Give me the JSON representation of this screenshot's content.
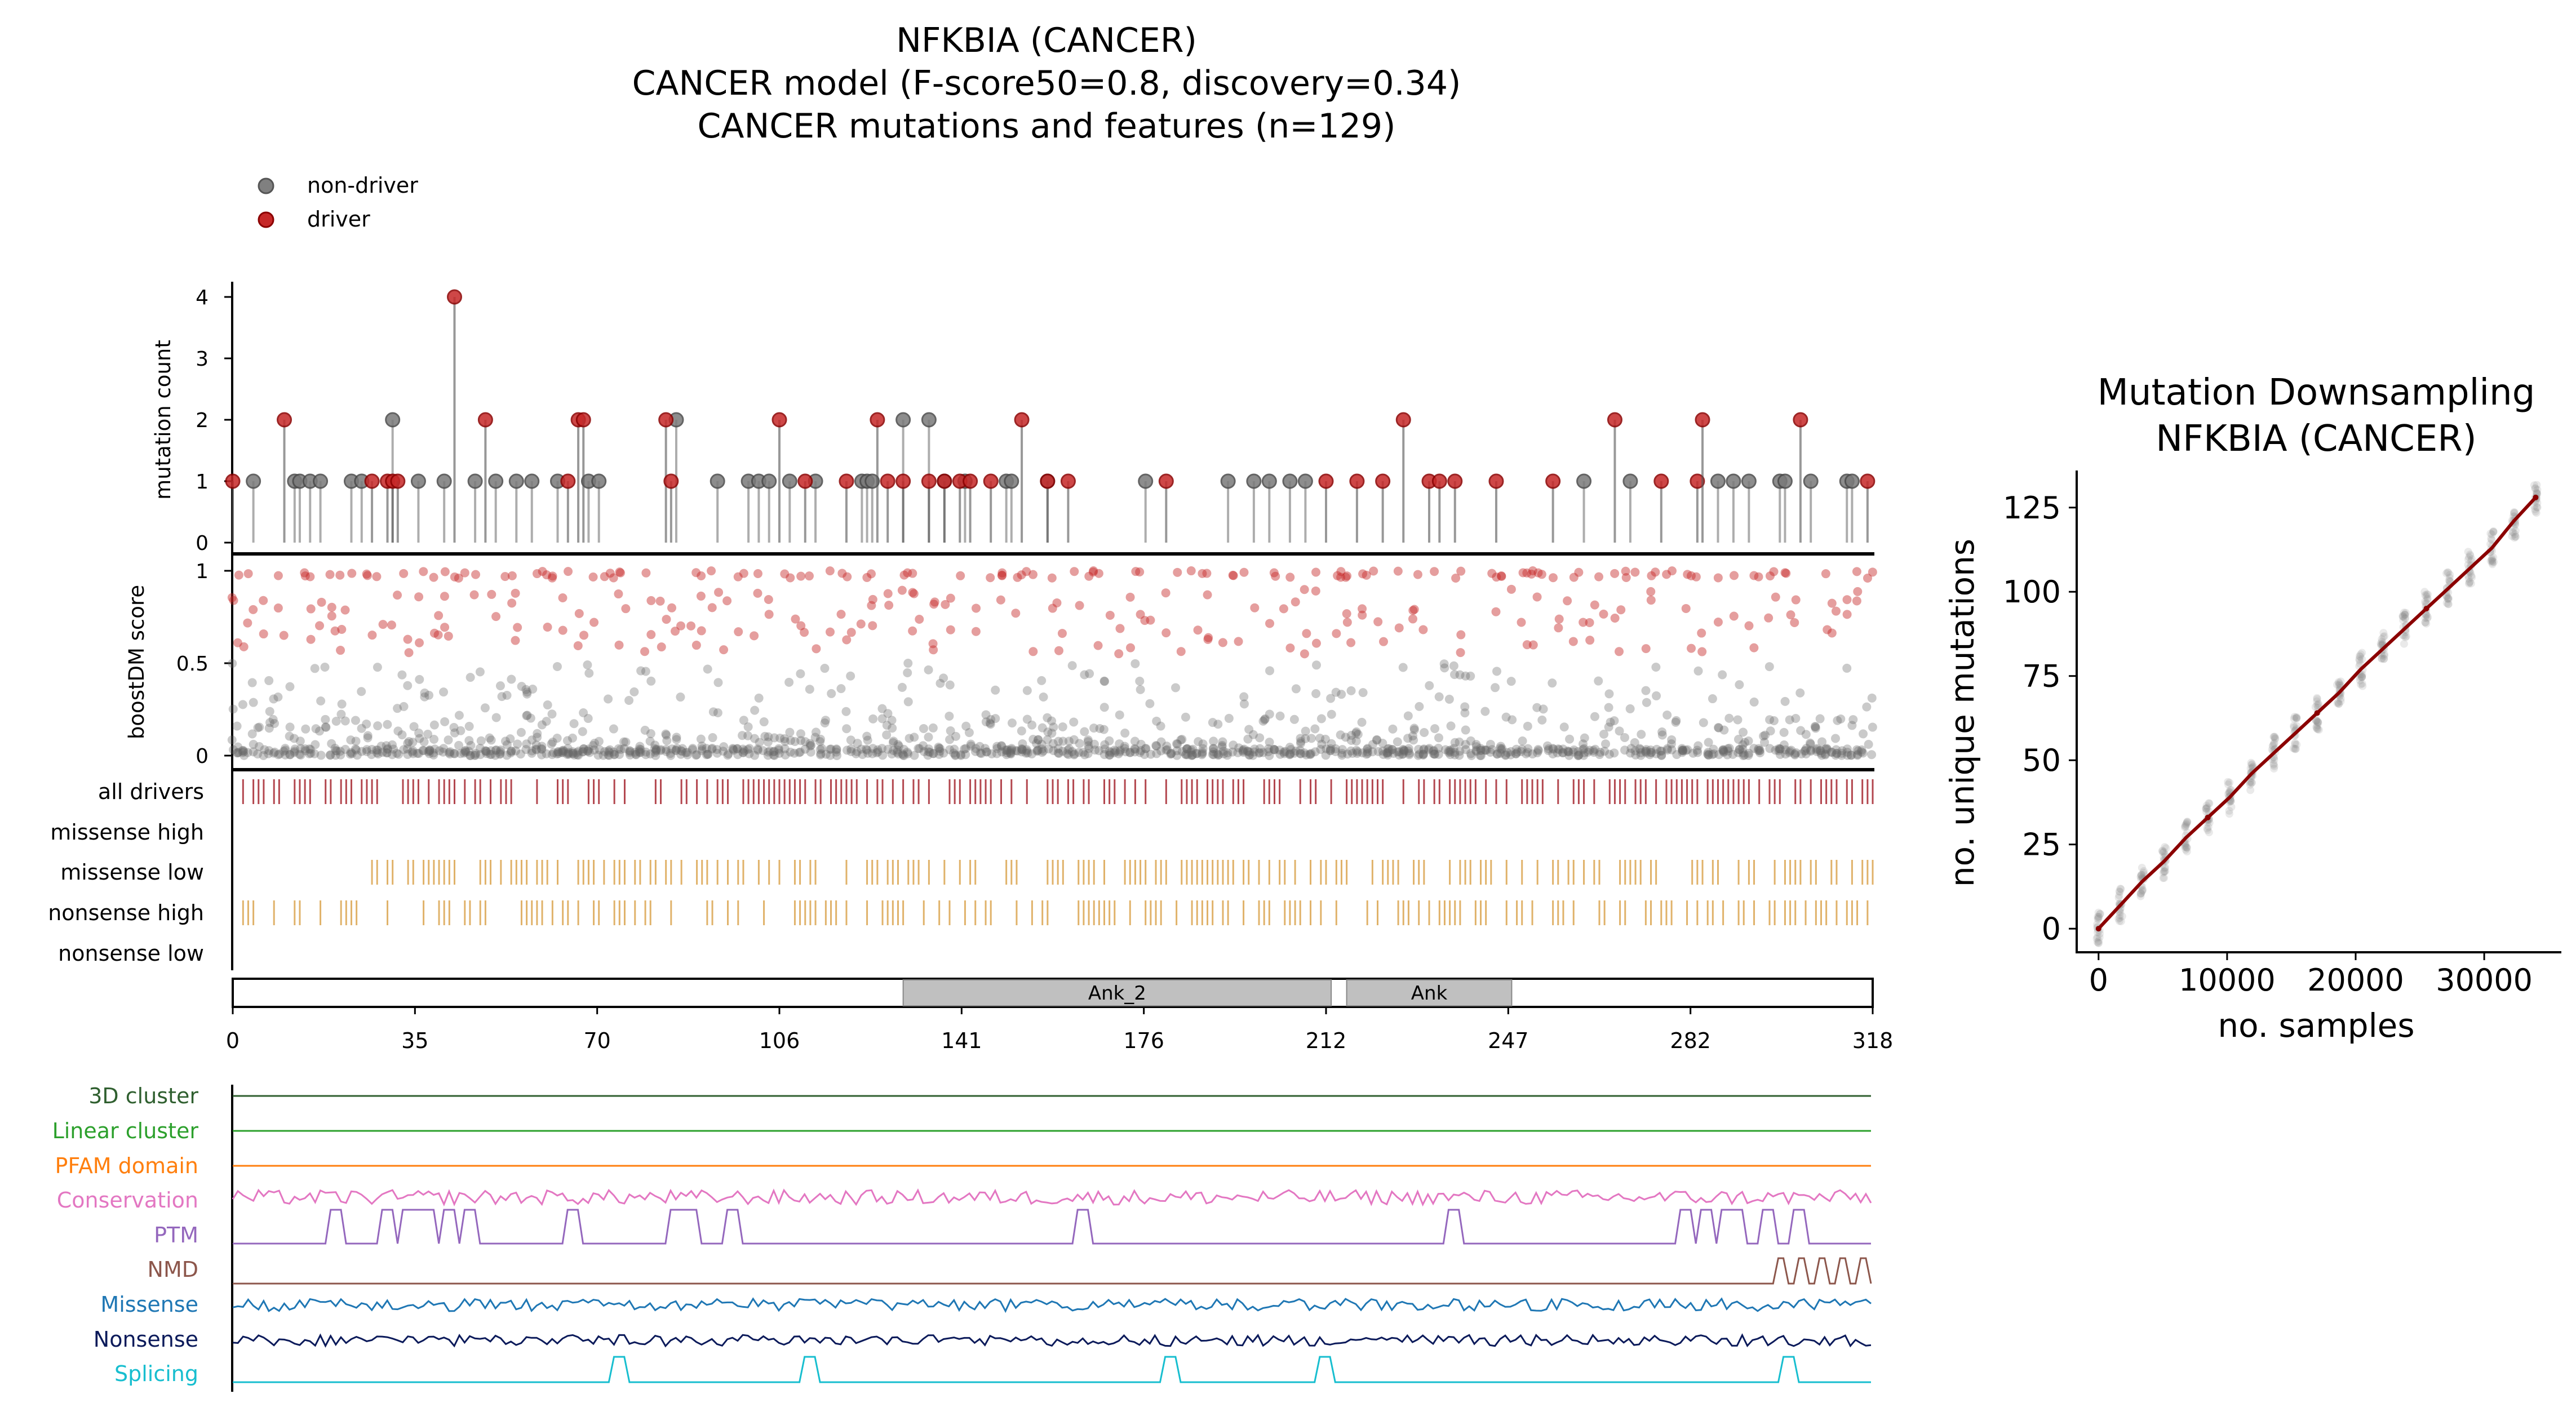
{
  "main": {
    "title_lines": [
      "NFKBIA (CANCER)",
      "CANCER model (F-score50=0.8, discovery=0.34)",
      "CANCER mutations and features (n=129)"
    ],
    "legend": [
      {
        "label": "non-driver",
        "color": "#808080"
      },
      {
        "label": "driver",
        "color": "#c62828"
      }
    ]
  },
  "colors": {
    "driver": "#c62828",
    "driver_dark": "#8b0000",
    "nondriver": "#707070",
    "drivers_track": "#b3474f",
    "csqn_track": "#e0b26a",
    "domain_fill": "#c0c0c0",
    "cluster3d": "#2f5f2f",
    "linear": "#2ca02c",
    "pfam": "#ff7f0e",
    "conservation": "#e377c2",
    "ptm": "#9467bd",
    "nmd": "#8c564b",
    "missense": "#1f77b4",
    "nonsense": "#0b1a5a",
    "splicing": "#17becf",
    "downsample_line": "#8b0000"
  },
  "chart_data": [
    {
      "id": "lollipop",
      "type": "scatter",
      "ylabel": "mutation count",
      "xlim": [
        0,
        318
      ],
      "ylim": [
        0,
        4
      ],
      "yticks": [
        "0",
        "1",
        "2",
        "3",
        "4"
      ],
      "drivers": [
        [
          0,
          1
        ],
        [
          10,
          2
        ],
        [
          27,
          1
        ],
        [
          30,
          1
        ],
        [
          31,
          1
        ],
        [
          32,
          1
        ],
        [
          43,
          4
        ],
        [
          49,
          2
        ],
        [
          65,
          1
        ],
        [
          67,
          2
        ],
        [
          68,
          2
        ],
        [
          84,
          2
        ],
        [
          85,
          1
        ],
        [
          106,
          2
        ],
        [
          111,
          1
        ],
        [
          119,
          1
        ],
        [
          125,
          2
        ],
        [
          127,
          1
        ],
        [
          130,
          1
        ],
        [
          135,
          1
        ],
        [
          138,
          1
        ],
        [
          141,
          1
        ],
        [
          143,
          1
        ],
        [
          147,
          1
        ],
        [
          153,
          2
        ],
        [
          158,
          1
        ],
        [
          162,
          1
        ],
        [
          181,
          1
        ],
        [
          212,
          1
        ],
        [
          218,
          1
        ],
        [
          223,
          1
        ],
        [
          227,
          2
        ],
        [
          232,
          1
        ],
        [
          234,
          1
        ],
        [
          237,
          1
        ],
        [
          245,
          1
        ],
        [
          256,
          1
        ],
        [
          268,
          2
        ],
        [
          277,
          1
        ],
        [
          284,
          1
        ],
        [
          285,
          2
        ],
        [
          304,
          2
        ],
        [
          317,
          1
        ]
      ],
      "nondrivers": [
        [
          4,
          1
        ],
        [
          12,
          1
        ],
        [
          13,
          1
        ],
        [
          15,
          1
        ],
        [
          17,
          1
        ],
        [
          23,
          1
        ],
        [
          25,
          1
        ],
        [
          31,
          2
        ],
        [
          36,
          1
        ],
        [
          41,
          1
        ],
        [
          47,
          1
        ],
        [
          51,
          1
        ],
        [
          55,
          1
        ],
        [
          58,
          1
        ],
        [
          63,
          1
        ],
        [
          69,
          1
        ],
        [
          71,
          1
        ],
        [
          86,
          2
        ],
        [
          94,
          1
        ],
        [
          100,
          1
        ],
        [
          102,
          1
        ],
        [
          104,
          1
        ],
        [
          108,
          1
        ],
        [
          113,
          1
        ],
        [
          122,
          1
        ],
        [
          123,
          1
        ],
        [
          124,
          1
        ],
        [
          130,
          2
        ],
        [
          135,
          2
        ],
        [
          138,
          1
        ],
        [
          142,
          1
        ],
        [
          150,
          1
        ],
        [
          151,
          1
        ],
        [
          158,
          1
        ],
        [
          177,
          1
        ],
        [
          193,
          1
        ],
        [
          198,
          1
        ],
        [
          201,
          1
        ],
        [
          205,
          1
        ],
        [
          208,
          1
        ],
        [
          262,
          1
        ],
        [
          271,
          1
        ],
        [
          288,
          1
        ],
        [
          291,
          1
        ],
        [
          294,
          1
        ],
        [
          300,
          1
        ],
        [
          301,
          1
        ],
        [
          306,
          1
        ],
        [
          313,
          1
        ],
        [
          314,
          1
        ]
      ]
    },
    {
      "id": "boostdm",
      "type": "scatter",
      "ylabel": "boostDM score",
      "xlim": [
        0,
        318
      ],
      "ylim": [
        0,
        1
      ],
      "yticks": [
        "0",
        "0.5",
        "1"
      ]
    },
    {
      "id": "tracks",
      "type": "scatter",
      "labels": [
        "all drivers",
        "missense high",
        "missense low",
        "nonsense high",
        "nonsense low"
      ],
      "domains": [
        {
          "name": "Ank_2",
          "start": 130,
          "end": 213
        },
        {
          "name": "Ank",
          "start": 216,
          "end": 248
        }
      ],
      "xticks": [
        "0",
        "35",
        "70",
        "106",
        "141",
        "176",
        "212",
        "247",
        "282",
        "318"
      ]
    },
    {
      "id": "features",
      "type": "line",
      "labels": [
        "3D cluster",
        "Linear cluster",
        "PFAM domain",
        "Conservation",
        "PTM",
        "NMD",
        "Missense",
        "Nonsense",
        "Splicing"
      ],
      "ptm_peaks": [
        20,
        30,
        34,
        36,
        38,
        42,
        46,
        66,
        86,
        89,
        97,
        165,
        237,
        282,
        286,
        290,
        292,
        298,
        304
      ],
      "nmd_start": 300,
      "splicing_peaks": [
        75,
        112,
        182,
        212,
        302
      ]
    },
    {
      "id": "downsampling",
      "type": "line",
      "title": "Mutation Downsampling",
      "subtitle": "NFKBIA (CANCER)",
      "xlabel": "no. samples",
      "ylabel": "no. unique mutations",
      "xlim": [
        -1700,
        36000
      ],
      "ylim": [
        -7,
        136
      ],
      "xticks": [
        0,
        10000,
        20000,
        30000
      ],
      "yticks": [
        0,
        25,
        50,
        75,
        100,
        125
      ],
      "x": [
        0,
        1700,
        3400,
        5100,
        6800,
        8500,
        10200,
        11900,
        13600,
        15300,
        17000,
        18700,
        20400,
        22100,
        23800,
        25500,
        27200,
        28900,
        30600,
        32300,
        34000
      ],
      "y": [
        0,
        7,
        14,
        20,
        27,
        33,
        39,
        46,
        52,
        58,
        64,
        70,
        77,
        83,
        89,
        95,
        101,
        107,
        113,
        121,
        128
      ]
    }
  ]
}
